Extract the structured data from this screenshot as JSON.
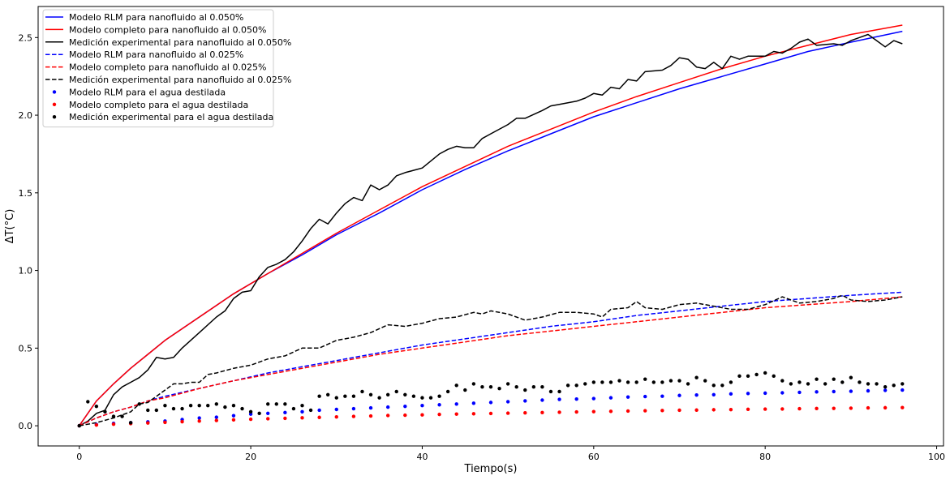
{
  "chart_data": {
    "type": "line",
    "title": "",
    "xlabel": "Tiempo(s)",
    "ylabel": "ΔT(°C)",
    "xlim": [
      -4.8,
      100.8
    ],
    "ylim": [
      -0.13,
      2.7
    ],
    "xticks": [
      0,
      20,
      40,
      60,
      80,
      100
    ],
    "yticks": [
      0.0,
      0.5,
      1.0,
      1.5,
      2.0,
      2.5
    ],
    "xtick_labels": [
      "0",
      "20",
      "40",
      "60",
      "80",
      "100"
    ],
    "ytick_labels": [
      "0.0",
      "0.5",
      "1.0",
      "1.5",
      "2.0",
      "2.5"
    ],
    "grid": false,
    "legend_position": "top-left",
    "series": [
      {
        "name": "Modelo RLM para nanofluido al 0.050%",
        "style": "solid",
        "color": "#0000ff",
        "x": [
          0,
          2,
          4,
          6,
          8,
          10,
          14,
          18,
          22,
          26,
          30,
          35,
          40,
          45,
          50,
          55,
          60,
          65,
          70,
          75,
          80,
          85,
          90,
          96
        ],
        "y": [
          0,
          0.16,
          0.27,
          0.37,
          0.46,
          0.55,
          0.7,
          0.85,
          0.98,
          1.1,
          1.23,
          1.37,
          1.52,
          1.65,
          1.77,
          1.88,
          1.99,
          2.08,
          2.17,
          2.25,
          2.33,
          2.41,
          2.47,
          2.54
        ]
      },
      {
        "name": "Modelo completo para nanofluido al 0.050%",
        "style": "solid",
        "color": "#ff0000",
        "x": [
          0,
          2,
          4,
          6,
          8,
          10,
          14,
          18,
          22,
          26,
          30,
          35,
          40,
          45,
          50,
          55,
          60,
          65,
          70,
          75,
          80,
          85,
          90,
          96
        ],
        "y": [
          0,
          0.16,
          0.27,
          0.37,
          0.46,
          0.55,
          0.7,
          0.85,
          0.98,
          1.11,
          1.24,
          1.39,
          1.54,
          1.67,
          1.8,
          1.91,
          2.02,
          2.12,
          2.21,
          2.3,
          2.38,
          2.45,
          2.52,
          2.58
        ]
      },
      {
        "name": "Medición experimental para nanofluido al 0.050%",
        "style": "solid",
        "color": "#000000",
        "x": [
          0,
          1,
          2,
          3,
          4,
          5,
          6,
          7,
          8,
          9,
          10,
          11,
          12,
          14,
          16,
          17,
          18,
          19,
          20,
          21,
          22,
          23,
          24,
          25,
          26,
          27,
          28,
          29,
          30,
          31,
          32,
          33,
          34,
          35,
          36,
          37,
          38,
          40,
          42,
          43,
          44,
          45,
          46,
          47,
          48,
          50,
          51,
          52,
          54,
          55,
          56,
          58,
          59,
          60,
          61,
          62,
          63,
          64,
          65,
          66,
          68,
          69,
          70,
          71,
          72,
          73,
          74,
          75,
          76,
          77,
          78,
          80,
          81,
          82,
          83,
          84,
          85,
          86,
          88,
          89,
          90,
          91,
          92,
          93,
          94,
          95,
          96
        ],
        "y": [
          0,
          0.03,
          0.08,
          0.1,
          0.2,
          0.25,
          0.28,
          0.31,
          0.36,
          0.44,
          0.43,
          0.44,
          0.5,
          0.6,
          0.7,
          0.74,
          0.82,
          0.86,
          0.87,
          0.96,
          1.02,
          1.04,
          1.07,
          1.12,
          1.19,
          1.27,
          1.33,
          1.3,
          1.37,
          1.43,
          1.47,
          1.45,
          1.55,
          1.52,
          1.55,
          1.61,
          1.63,
          1.66,
          1.75,
          1.78,
          1.8,
          1.79,
          1.79,
          1.85,
          1.88,
          1.94,
          1.98,
          1.98,
          2.03,
          2.06,
          2.07,
          2.09,
          2.11,
          2.14,
          2.13,
          2.18,
          2.17,
          2.23,
          2.22,
          2.28,
          2.29,
          2.32,
          2.37,
          2.36,
          2.31,
          2.3,
          2.34,
          2.3,
          2.38,
          2.36,
          2.38,
          2.38,
          2.41,
          2.4,
          2.43,
          2.47,
          2.49,
          2.45,
          2.46,
          2.45,
          2.48,
          2.5,
          2.52,
          2.48,
          2.44,
          2.48,
          2.46
        ]
      },
      {
        "name": "Modelo RLM para nanofluido al 0.025%",
        "style": "dashed",
        "color": "#0000ff",
        "x": [
          0,
          2,
          4,
          6,
          8,
          10,
          14,
          18,
          22,
          26,
          30,
          35,
          40,
          45,
          50,
          55,
          60,
          65,
          70,
          75,
          80,
          85,
          90,
          96
        ],
        "y": [
          0,
          0.05,
          0.09,
          0.12,
          0.16,
          0.19,
          0.24,
          0.29,
          0.34,
          0.38,
          0.42,
          0.47,
          0.52,
          0.56,
          0.6,
          0.64,
          0.67,
          0.71,
          0.74,
          0.77,
          0.8,
          0.82,
          0.84,
          0.86
        ]
      },
      {
        "name": "Modelo completo para nanofluido al 0.025%",
        "style": "dashed",
        "color": "#ff0000",
        "x": [
          0,
          2,
          4,
          6,
          8,
          10,
          14,
          18,
          22,
          26,
          30,
          35,
          40,
          45,
          50,
          55,
          60,
          65,
          70,
          75,
          80,
          85,
          90,
          96
        ],
        "y": [
          0,
          0.05,
          0.09,
          0.12,
          0.16,
          0.18,
          0.24,
          0.29,
          0.33,
          0.37,
          0.41,
          0.46,
          0.5,
          0.54,
          0.58,
          0.61,
          0.64,
          0.67,
          0.7,
          0.73,
          0.76,
          0.78,
          0.8,
          0.83
        ]
      },
      {
        "name": "Medición experimental para nanofluido al 0.025%",
        "style": "dashed",
        "color": "#000000",
        "x": [
          0,
          2,
          4,
          6,
          7,
          8,
          10,
          11,
          12,
          13,
          14,
          15,
          16,
          18,
          20,
          22,
          24,
          26,
          28,
          30,
          32,
          34,
          36,
          38,
          40,
          42,
          44,
          46,
          47,
          48,
          50,
          52,
          54,
          56,
          58,
          60,
          61,
          62,
          64,
          65,
          66,
          68,
          70,
          72,
          74,
          76,
          78,
          80,
          82,
          84,
          86,
          88,
          89,
          90,
          92,
          94,
          96
        ],
        "y": [
          0,
          0.02,
          0.05,
          0.09,
          0.14,
          0.15,
          0.23,
          0.27,
          0.27,
          0.28,
          0.28,
          0.33,
          0.34,
          0.37,
          0.39,
          0.43,
          0.45,
          0.5,
          0.5,
          0.55,
          0.57,
          0.6,
          0.65,
          0.64,
          0.66,
          0.69,
          0.7,
          0.73,
          0.72,
          0.74,
          0.72,
          0.68,
          0.7,
          0.73,
          0.73,
          0.72,
          0.7,
          0.75,
          0.76,
          0.8,
          0.76,
          0.75,
          0.78,
          0.79,
          0.77,
          0.75,
          0.75,
          0.78,
          0.83,
          0.79,
          0.8,
          0.82,
          0.84,
          0.81,
          0.8,
          0.81,
          0.83
        ]
      },
      {
        "name": "Modelo RLM para el agua destilada",
        "style": "dots",
        "color": "#0000ff",
        "x": [
          0,
          2,
          4,
          6,
          8,
          10,
          12,
          14,
          16,
          18,
          20,
          22,
          24,
          26,
          28,
          30,
          32,
          34,
          36,
          38,
          40,
          42,
          44,
          46,
          48,
          50,
          52,
          54,
          56,
          58,
          60,
          62,
          64,
          66,
          68,
          70,
          72,
          74,
          76,
          78,
          80,
          82,
          84,
          86,
          88,
          90,
          92,
          94,
          96
        ],
        "y": [
          0,
          0.008,
          0.015,
          0.02,
          0.025,
          0.03,
          0.04,
          0.05,
          0.055,
          0.065,
          0.075,
          0.08,
          0.085,
          0.09,
          0.1,
          0.105,
          0.11,
          0.115,
          0.12,
          0.125,
          0.13,
          0.135,
          0.14,
          0.145,
          0.15,
          0.155,
          0.16,
          0.165,
          0.17,
          0.172,
          0.175,
          0.18,
          0.185,
          0.188,
          0.19,
          0.195,
          0.198,
          0.2,
          0.205,
          0.208,
          0.21,
          0.212,
          0.215,
          0.218,
          0.22,
          0.222,
          0.225,
          0.228,
          0.23
        ]
      },
      {
        "name": "Modelo completo para el agua destilada",
        "style": "dots",
        "color": "#ff0000",
        "x": [
          0,
          2,
          4,
          6,
          8,
          10,
          12,
          14,
          16,
          18,
          20,
          22,
          24,
          26,
          28,
          30,
          32,
          34,
          36,
          38,
          40,
          42,
          44,
          46,
          48,
          50,
          52,
          54,
          56,
          58,
          60,
          62,
          64,
          66,
          68,
          70,
          72,
          74,
          76,
          78,
          80,
          82,
          84,
          86,
          88,
          90,
          92,
          94,
          96
        ],
        "y": [
          0,
          0.005,
          0.01,
          0.014,
          0.018,
          0.022,
          0.026,
          0.03,
          0.034,
          0.038,
          0.042,
          0.045,
          0.048,
          0.051,
          0.054,
          0.057,
          0.06,
          0.063,
          0.066,
          0.068,
          0.07,
          0.073,
          0.075,
          0.077,
          0.079,
          0.081,
          0.083,
          0.085,
          0.087,
          0.089,
          0.091,
          0.093,
          0.095,
          0.097,
          0.098,
          0.1,
          0.101,
          0.103,
          0.104,
          0.106,
          0.107,
          0.108,
          0.11,
          0.111,
          0.112,
          0.113,
          0.115,
          0.116,
          0.117
        ]
      },
      {
        "name": "Medición experimental para el agua destilada",
        "style": "dots",
        "color": "#000000",
        "x": [
          0,
          1,
          2,
          3,
          4,
          5,
          6,
          7,
          8,
          9,
          10,
          11,
          12,
          13,
          14,
          15,
          16,
          17,
          18,
          19,
          20,
          21,
          22,
          23,
          24,
          25,
          26,
          27,
          28,
          29,
          30,
          31,
          32,
          33,
          34,
          35,
          36,
          37,
          38,
          39,
          40,
          41,
          42,
          43,
          44,
          45,
          46,
          47,
          48,
          49,
          50,
          51,
          52,
          53,
          54,
          55,
          56,
          57,
          58,
          59,
          60,
          61,
          62,
          63,
          64,
          65,
          66,
          67,
          68,
          69,
          70,
          71,
          72,
          73,
          74,
          75,
          76,
          77,
          78,
          79,
          80,
          81,
          82,
          83,
          84,
          85,
          86,
          87,
          88,
          89,
          90,
          91,
          92,
          93,
          94,
          95,
          96
        ],
        "y": [
          0,
          0.155,
          0.125,
          0.09,
          0.06,
          0.06,
          0.02,
          0.14,
          0.1,
          0.1,
          0.13,
          0.11,
          0.11,
          0.13,
          0.13,
          0.13,
          0.14,
          0.12,
          0.13,
          0.11,
          0.09,
          0.08,
          0.14,
          0.14,
          0.14,
          0.11,
          0.13,
          0.1,
          0.19,
          0.2,
          0.18,
          0.19,
          0.19,
          0.22,
          0.2,
          0.18,
          0.2,
          0.22,
          0.2,
          0.19,
          0.18,
          0.18,
          0.19,
          0.22,
          0.26,
          0.23,
          0.27,
          0.25,
          0.25,
          0.24,
          0.27,
          0.25,
          0.23,
          0.25,
          0.25,
          0.22,
          0.22,
          0.26,
          0.26,
          0.27,
          0.28,
          0.28,
          0.28,
          0.29,
          0.28,
          0.28,
          0.3,
          0.28,
          0.28,
          0.29,
          0.29,
          0.27,
          0.31,
          0.29,
          0.26,
          0.26,
          0.28,
          0.32,
          0.32,
          0.33,
          0.34,
          0.32,
          0.29,
          0.27,
          0.28,
          0.27,
          0.3,
          0.27,
          0.3,
          0.28,
          0.31,
          0.28,
          0.27,
          0.27,
          0.25,
          0.26,
          0.27
        ]
      }
    ]
  }
}
